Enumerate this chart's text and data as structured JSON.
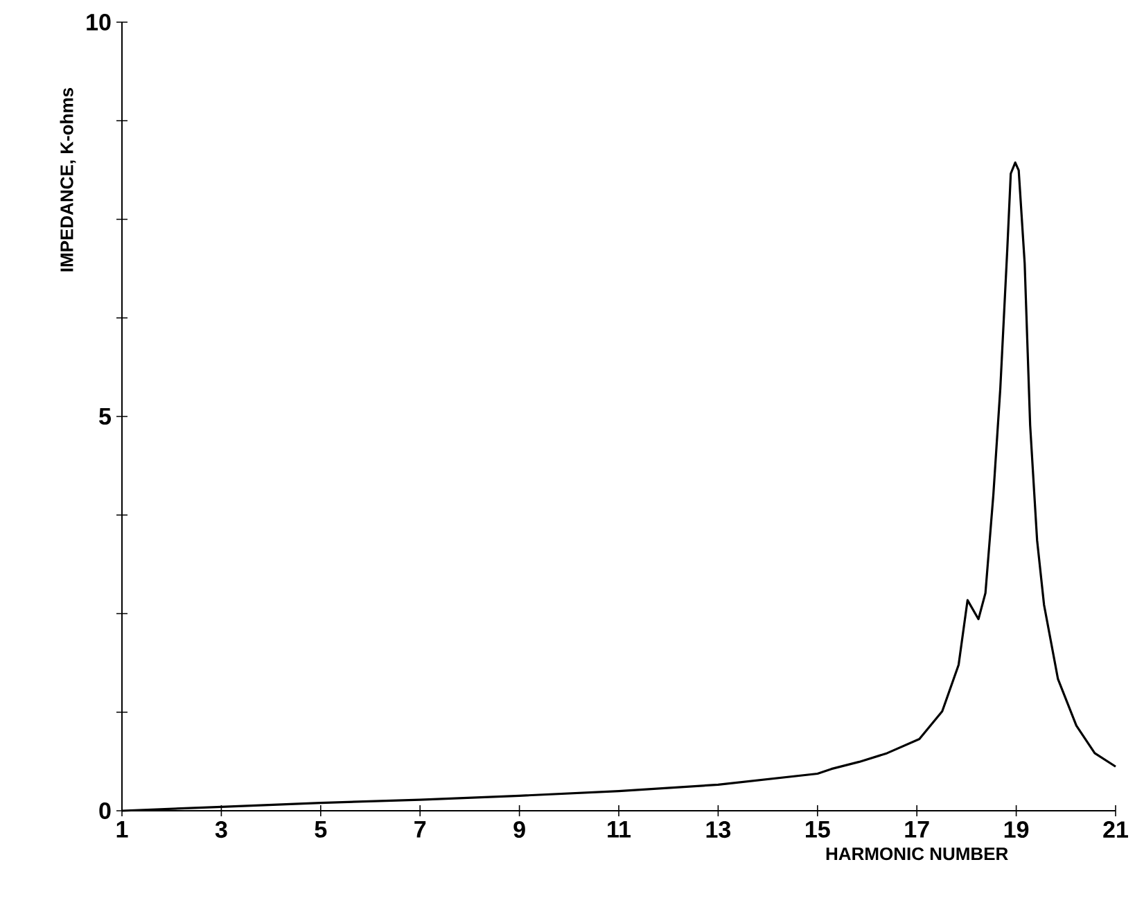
{
  "chart_data": {
    "type": "line",
    "xlabel": "HARMONIC NUMBER",
    "ylabel": "IMPEDANCE, K-ohms",
    "xlim": [
      1,
      21
    ],
    "ylim": [
      0,
      10
    ],
    "xticks": [
      1,
      3,
      5,
      7,
      9,
      11,
      13,
      15,
      17,
      19,
      21
    ],
    "yticks": [
      0,
      {
        "value": 1.25,
        "label": null
      },
      {
        "value": 2.5,
        "label": null
      },
      {
        "value": 3.75,
        "label": null
      },
      5,
      {
        "value": 6.25,
        "label": null
      },
      {
        "value": 7.5,
        "label": null
      },
      {
        "value": 8.75,
        "label": null
      },
      10
    ],
    "grid": false,
    "marker": "none",
    "line_style": "solid",
    "series": [
      {
        "color": "#000000",
        "x": [
          1,
          3,
          5,
          7,
          9,
          11,
          13,
          15,
          15.28,
          15.84,
          16.4,
          17.05,
          17.51,
          17.84,
          18.02,
          18.24,
          18.38,
          18.54,
          18.68,
          18.82,
          18.89,
          18.98,
          19.05,
          19.17,
          19.28,
          19.42,
          19.56,
          19.84,
          20.21,
          20.58,
          21
        ],
        "values": [
          0,
          0.05,
          0.1,
          0.14,
          0.19,
          0.25,
          0.33,
          0.47,
          0.53,
          0.62,
          0.73,
          0.91,
          1.26,
          1.85,
          2.67,
          2.43,
          2.76,
          4.01,
          5.36,
          7.12,
          8.08,
          8.22,
          8.12,
          6.94,
          4.89,
          3.43,
          2.61,
          1.67,
          1.08,
          0.73,
          0.56
        ]
      }
    ]
  }
}
